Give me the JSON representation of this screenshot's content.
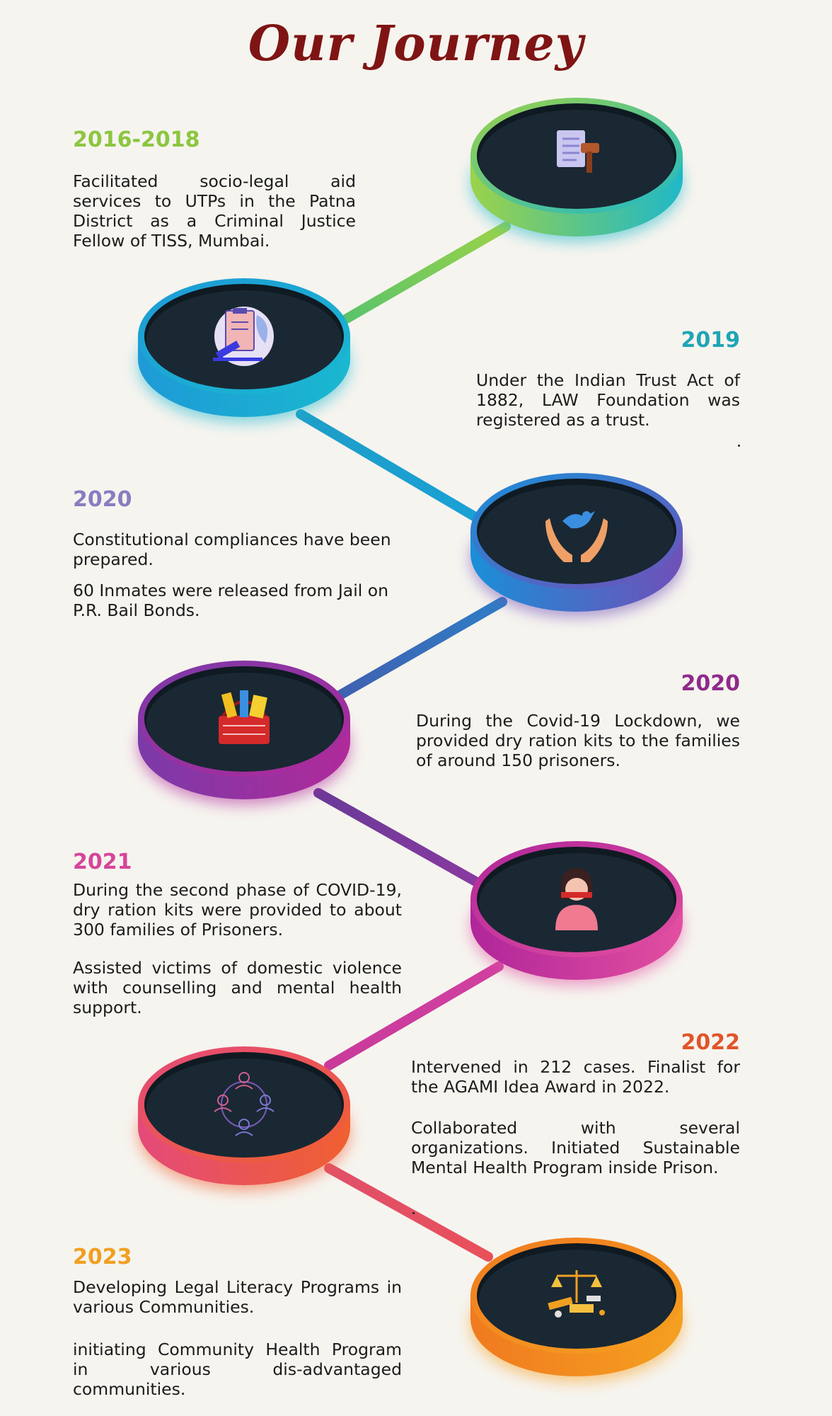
{
  "title": "Our Journey",
  "colors": {
    "title": "#7f1414",
    "disc_face": "#1a2833",
    "background": "#f6f4ef"
  },
  "milestones": [
    {
      "year": "2016-2018",
      "year_color": "#8cc63f",
      "icon": "legal-document-gavel-icon",
      "paragraphs": [
        "Facilitated socio-legal aid services to UTPs in the Patna District as a Criminal Justice Fellow of TISS, Mumbai."
      ]
    },
    {
      "year": "2019",
      "year_color": "#1fa5b5",
      "icon": "trust-registration-clipboard-icon",
      "paragraphs": [
        "Under the Indian Trust Act of 1882, LAW Foundation was registered as a trust."
      ]
    },
    {
      "year": "2020",
      "year_color": "#8a7cc0",
      "icon": "hands-dove-icon",
      "paragraphs": [
        "Constitutional compliances have been prepared.",
        "60 Inmates were released from Jail on P.R. Bail Bonds."
      ]
    },
    {
      "year": "2020",
      "year_color": "#8e2a8c",
      "icon": "ration-basket-icon",
      "paragraphs": [
        "During the Covid-19 Lockdown, we provided dry ration kits to the families of around 150 prisoners."
      ]
    },
    {
      "year": "2021",
      "year_color": "#d6459a",
      "icon": "silenced-woman-icon",
      "paragraphs": [
        "During the second phase of COVID-19, dry ration kits were provided to about 300 families of Prisoners.",
        "Assisted victims of domestic violence with counselling and mental health support."
      ]
    },
    {
      "year": "2022",
      "year_color": "#e0552a",
      "icon": "community-network-icon",
      "paragraphs": [
        "Intervened in 212 cases. Finalist for the AGAMI Idea Award in 2022.",
        "Collaborated with several organizations. Initiated Sustainable Mental Health Program inside Prison."
      ]
    },
    {
      "year": "2023",
      "year_color": "#f0a020",
      "icon": "scales-justice-books-icon",
      "paragraphs": [
        "Developing Legal Literacy Programs in various Communities.",
        "initiating Community Health Program in various dis-advantaged communities."
      ]
    }
  ]
}
